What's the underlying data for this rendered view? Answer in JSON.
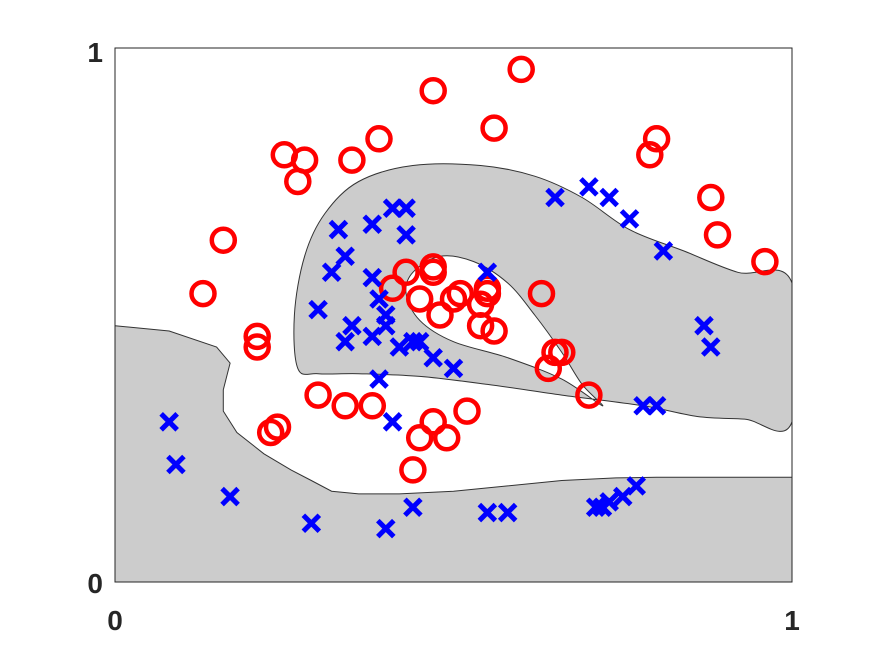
{
  "chart_data": {
    "type": "scatter",
    "title": "",
    "xlabel": "",
    "ylabel": "",
    "xlim": [
      0,
      1
    ],
    "ylim": [
      0,
      1
    ],
    "x_ticks": [
      "0",
      "1"
    ],
    "y_ticks": [
      "0",
      "1"
    ],
    "grid": false,
    "colors": {
      "class_a": "#ff0000",
      "class_b": "#0000ff",
      "region_fill": "#cccccc",
      "axes": "#262626"
    },
    "regions": [
      {
        "boundary": [
          [
            0.0,
            0.48
          ],
          [
            0.08,
            0.47
          ],
          [
            0.15,
            0.44
          ],
          [
            0.17,
            0.41
          ],
          [
            0.16,
            0.36
          ],
          [
            0.16,
            0.32
          ],
          [
            0.18,
            0.28
          ],
          [
            0.22,
            0.24
          ],
          [
            0.26,
            0.21
          ],
          [
            0.29,
            0.19
          ],
          [
            0.32,
            0.17
          ],
          [
            0.36,
            0.165
          ],
          [
            0.42,
            0.165
          ],
          [
            0.5,
            0.17
          ],
          [
            0.58,
            0.18
          ],
          [
            0.66,
            0.19
          ],
          [
            0.74,
            0.195
          ],
          [
            0.8,
            0.196
          ],
          [
            1.0,
            0.196
          ],
          [
            1.0,
            0.0
          ],
          [
            0.0,
            0.0
          ]
        ]
      },
      {
        "boundary": [
          [
            0.27,
            0.4
          ],
          [
            0.265,
            0.5
          ],
          [
            0.28,
            0.61
          ],
          [
            0.31,
            0.69
          ],
          [
            0.36,
            0.75
          ],
          [
            0.44,
            0.78
          ],
          [
            0.54,
            0.78
          ],
          [
            0.62,
            0.76
          ],
          [
            0.69,
            0.72
          ],
          [
            0.76,
            0.66
          ],
          [
            0.84,
            0.62
          ],
          [
            0.92,
            0.58
          ],
          [
            1.0,
            0.56
          ],
          [
            1.0,
            0.3
          ],
          [
            0.93,
            0.305
          ],
          [
            0.86,
            0.31
          ],
          [
            0.78,
            0.33
          ],
          [
            0.66,
            0.35
          ],
          [
            0.55,
            0.37
          ],
          [
            0.45,
            0.385
          ],
          [
            0.36,
            0.39
          ],
          [
            0.3,
            0.39
          ]
        ],
        "hole": [
          [
            0.48,
            0.61
          ],
          [
            0.44,
            0.58
          ],
          [
            0.43,
            0.54
          ],
          [
            0.45,
            0.49
          ],
          [
            0.5,
            0.45
          ],
          [
            0.58,
            0.42
          ],
          [
            0.66,
            0.38
          ],
          [
            0.72,
            0.33
          ],
          [
            0.69,
            0.37
          ],
          [
            0.66,
            0.43
          ],
          [
            0.62,
            0.5
          ],
          [
            0.58,
            0.56
          ],
          [
            0.53,
            0.6
          ]
        ]
      }
    ],
    "series": [
      {
        "marker": "o",
        "color": "#ff0000",
        "x": [
          0.6,
          0.47,
          0.56,
          0.25,
          0.28,
          0.35,
          0.39,
          0.27,
          0.16,
          0.13,
          0.21,
          0.21,
          0.3,
          0.24,
          0.23,
          0.34,
          0.38,
          0.47,
          0.45,
          0.49,
          0.52,
          0.47,
          0.41,
          0.43,
          0.45,
          0.5,
          0.54,
          0.56,
          0.48,
          0.55,
          0.55,
          0.63,
          0.64,
          0.7,
          0.65,
          0.66,
          0.79,
          0.8,
          0.88,
          0.89,
          0.96,
          0.44,
          0.47,
          0.51,
          0.54
        ],
        "y": [
          0.96,
          0.92,
          0.85,
          0.8,
          0.79,
          0.79,
          0.83,
          0.75,
          0.64,
          0.54,
          0.46,
          0.44,
          0.35,
          0.29,
          0.28,
          0.33,
          0.33,
          0.3,
          0.27,
          0.27,
          0.32,
          0.58,
          0.55,
          0.58,
          0.53,
          0.53,
          0.48,
          0.47,
          0.5,
          0.54,
          0.55,
          0.54,
          0.4,
          0.35,
          0.43,
          0.43,
          0.8,
          0.83,
          0.72,
          0.65,
          0.6,
          0.21,
          0.59,
          0.54,
          0.52
        ]
      },
      {
        "marker": "x",
        "color": "#0000ff",
        "x": [
          0.08,
          0.09,
          0.17,
          0.29,
          0.4,
          0.44,
          0.55,
          0.58,
          0.41,
          0.39,
          0.4,
          0.38,
          0.42,
          0.44,
          0.45,
          0.5,
          0.47,
          0.41,
          0.43,
          0.38,
          0.43,
          0.33,
          0.3,
          0.34,
          0.35,
          0.39,
          0.4,
          0.38,
          0.34,
          0.32,
          0.55,
          0.65,
          0.7,
          0.73,
          0.76,
          0.81,
          0.87,
          0.88,
          0.78,
          0.8,
          0.71,
          0.72,
          0.73,
          0.75,
          0.77
        ],
        "y": [
          0.3,
          0.22,
          0.16,
          0.11,
          0.1,
          0.14,
          0.13,
          0.13,
          0.3,
          0.38,
          0.48,
          0.46,
          0.44,
          0.45,
          0.45,
          0.4,
          0.42,
          0.7,
          0.65,
          0.67,
          0.7,
          0.66,
          0.51,
          0.45,
          0.48,
          0.53,
          0.5,
          0.57,
          0.61,
          0.58,
          0.58,
          0.72,
          0.74,
          0.72,
          0.68,
          0.62,
          0.48,
          0.44,
          0.33,
          0.33,
          0.14,
          0.14,
          0.15,
          0.16,
          0.18
        ]
      }
    ]
  }
}
